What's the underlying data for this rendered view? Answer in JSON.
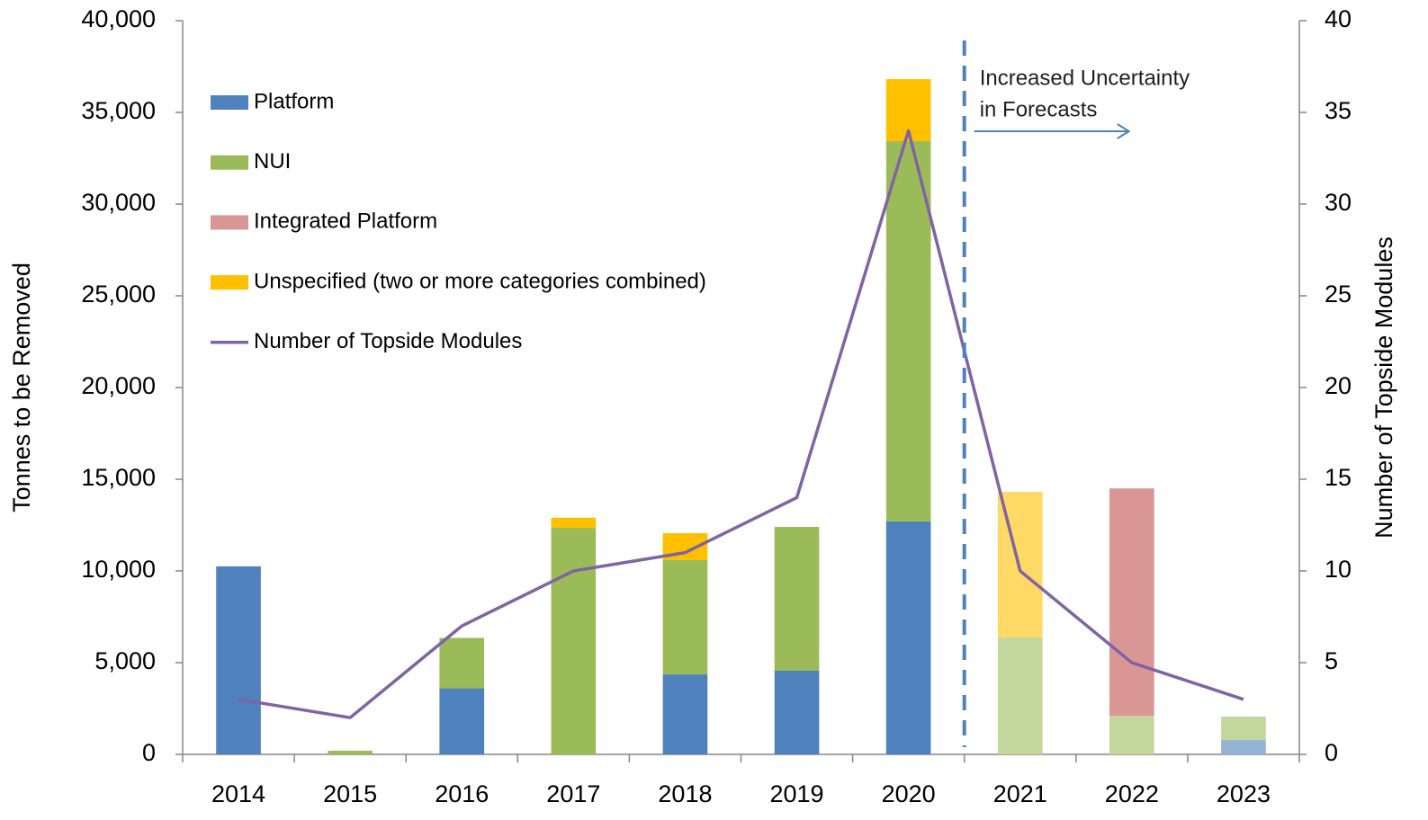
{
  "chart_data": {
    "type": "bar",
    "y_label": "Tonnes to be Removed",
    "y2_label": "Number of Topside Modules",
    "categories": [
      "2014",
      "2015",
      "2016",
      "2017",
      "2018",
      "2019",
      "2020",
      "2021",
      "2022",
      "2023"
    ],
    "forecast_from": "2021",
    "annotation": [
      "Increased Uncertainty",
      "in Forecasts"
    ],
    "stacked": true,
    "series": [
      {
        "name": "Platform",
        "color": "#4f81bd",
        "forecast_color": "#95b3d7",
        "values": [
          10250,
          0,
          3600,
          0,
          4360,
          4560,
          12700,
          0,
          0,
          780
        ]
      },
      {
        "name": "NUI",
        "color": "#9bbb59",
        "forecast_color": "#c3d69b",
        "values": [
          0,
          200,
          2750,
          12350,
          6230,
          7840,
          20730,
          6370,
          2100,
          1280
        ]
      },
      {
        "name": "Integrated Platform",
        "color": "#d99694",
        "forecast_color": "#d99694",
        "values": [
          0,
          0,
          0,
          0,
          0,
          0,
          0,
          0,
          12400,
          0
        ]
      },
      {
        "name": "Unspecified (two or more categories combined)",
        "color": "#ffc000",
        "forecast_color": "#ffd966",
        "values": [
          0,
          0,
          0,
          550,
          1470,
          0,
          3380,
          7940,
          0,
          0
        ]
      },
      {
        "name": "Number of Topside Modules",
        "type": "line",
        "axis": "y2",
        "color": "#8064a2",
        "values": [
          3,
          2,
          7,
          10,
          11,
          14,
          34,
          10,
          5,
          3
        ]
      }
    ],
    "ylim": [
      0,
      40000
    ],
    "yticks": [
      {
        "value": 0,
        "label": "0"
      },
      {
        "value": 5000,
        "label": "5,000"
      },
      {
        "value": 10000,
        "label": "10,000"
      },
      {
        "value": 15000,
        "label": "15,000"
      },
      {
        "value": 20000,
        "label": "20,000"
      },
      {
        "value": 25000,
        "label": "25,000"
      },
      {
        "value": 30000,
        "label": "30,000"
      },
      {
        "value": 35000,
        "label": "35,000"
      },
      {
        "value": 40000,
        "label": "40,000"
      }
    ],
    "y2lim": [
      0,
      40
    ],
    "y2ticks": [
      0,
      5,
      10,
      15,
      20,
      25,
      30,
      35,
      40
    ],
    "grid": false,
    "legend": "upper left"
  }
}
